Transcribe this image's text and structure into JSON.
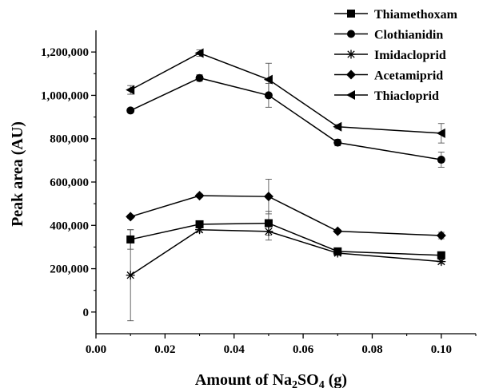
{
  "chart_data": {
    "type": "line",
    "xlabel_main": "Amount of Na",
    "xlabel_sub1": "2",
    "xlabel_mid": "SO",
    "xlabel_sub2": "4",
    "xlabel_end": " (g)",
    "ylabel": "Peak area (AU)",
    "xlim": [
      0.0,
      0.11
    ],
    "ylim": [
      -100000,
      1300000
    ],
    "xticks": [
      0.0,
      0.02,
      0.04,
      0.06,
      0.08,
      0.1
    ],
    "xtick_labels": [
      "0.00",
      "0.02",
      "0.04",
      "0.06",
      "0.08",
      "0.10"
    ],
    "yticks": [
      0,
      200000,
      400000,
      600000,
      800000,
      1000000,
      1200000
    ],
    "ytick_labels": [
      "0",
      "200,000",
      "400,000",
      "600,000",
      "800,000",
      "1,000,000",
      "1,200,000"
    ],
    "x": [
      0.01,
      0.03,
      0.05,
      0.07,
      0.1
    ],
    "legend_position": "top-right",
    "grid": false,
    "series": [
      {
        "name": "Thiamethoxam",
        "marker": "square",
        "values": [
          335000,
          405000,
          410000,
          280000,
          262000
        ],
        "errors": [
          45000,
          12000,
          55000,
          10000,
          10000
        ]
      },
      {
        "name": "Clothianidin",
        "marker": "circle",
        "values": [
          930000,
          1080000,
          1000000,
          782000,
          703000
        ],
        "errors": [
          8000,
          15000,
          55000,
          15000,
          35000
        ]
      },
      {
        "name": "Imidacloprid",
        "marker": "asterisk",
        "values": [
          170000,
          380000,
          372000,
          272000,
          233000
        ],
        "errors": [
          210000,
          12000,
          40000,
          10000,
          10000
        ]
      },
      {
        "name": "Acetamiprid",
        "marker": "diamond",
        "values": [
          440000,
          537000,
          533000,
          373000,
          353000
        ],
        "errors": [
          8000,
          8000,
          80000,
          8000,
          15000
        ]
      },
      {
        "name": "Thiacloprid",
        "marker": "triangle-left",
        "values": [
          1025000,
          1195000,
          1073000,
          855000,
          825000
        ],
        "errors": [
          20000,
          15000,
          75000,
          10000,
          45000
        ]
      }
    ]
  }
}
